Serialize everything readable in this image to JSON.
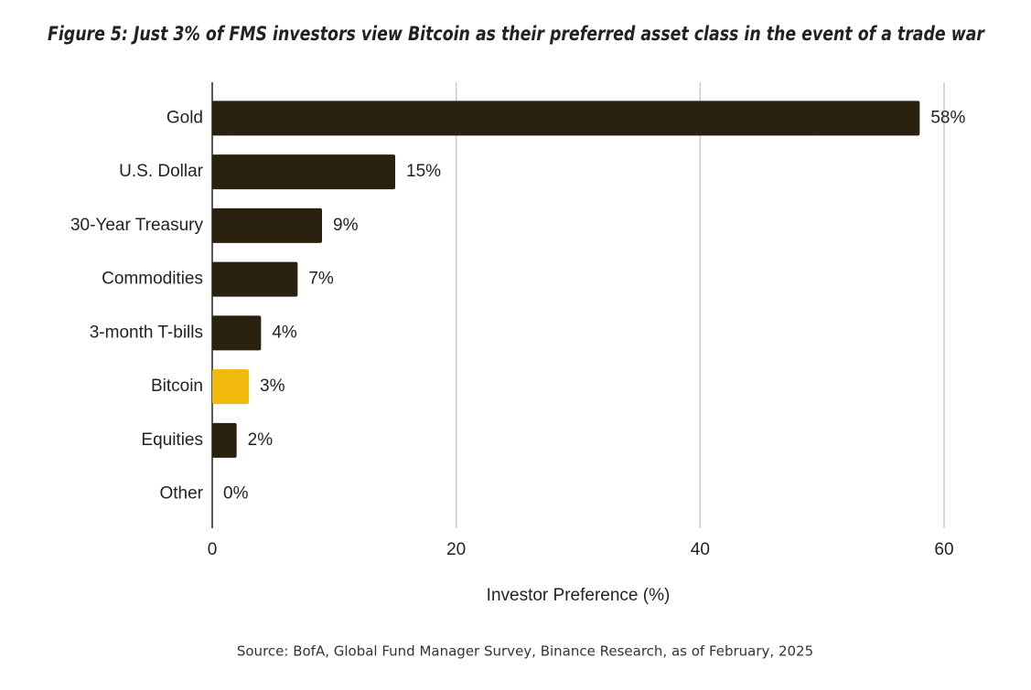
{
  "chart_data": {
    "type": "hbar",
    "title": "Figure 5: Just 3% of FMS investors view Bitcoin as their preferred asset class in the event of a trade war",
    "categories": [
      "Gold",
      "U.S. Dollar",
      "30-Year Treasury",
      "Commodities",
      "3-month T-bills",
      "Bitcoin",
      "Equities",
      "Other"
    ],
    "values": [
      58,
      15,
      9,
      7,
      4,
      3,
      2,
      0
    ],
    "value_labels": [
      "58%",
      "15%",
      "9%",
      "7%",
      "4%",
      "3%",
      "2%",
      "0%"
    ],
    "colors": [
      "#2b2110",
      "#2b2110",
      "#2b2110",
      "#2b2110",
      "#2b2110",
      "#f0b90b",
      "#2b2110",
      "#2b2110"
    ],
    "xlim": [
      0,
      60
    ],
    "xticks": [
      0,
      20,
      40,
      60
    ],
    "grid": true,
    "xlabel": "Investor Preference (%)",
    "source": "Source: BofA, Global Fund Manager Survey, Binance Research, as of February, 2025"
  }
}
